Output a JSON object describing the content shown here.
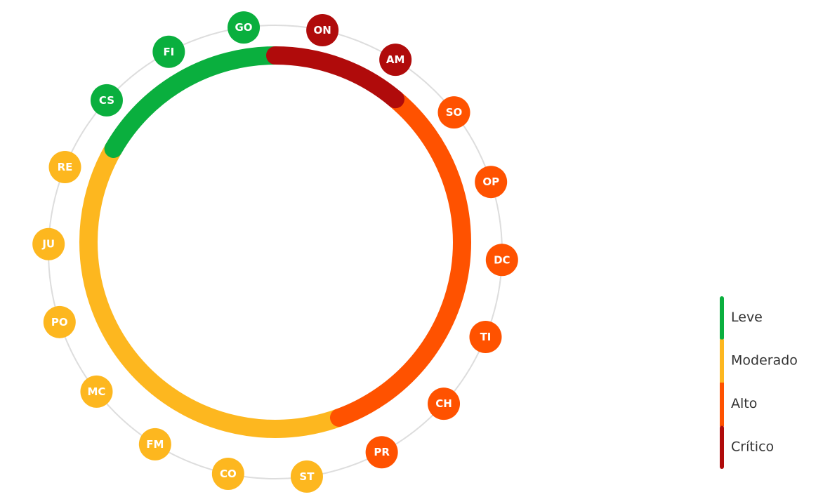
{
  "nodes": [
    {
      "label": "ON",
      "level": "Crítico"
    },
    {
      "label": "AM",
      "level": "Crítico"
    },
    {
      "label": "SO",
      "level": "Alto"
    },
    {
      "label": "OP",
      "level": "Alto"
    },
    {
      "label": "DC",
      "level": "Alto"
    },
    {
      "label": "TI",
      "level": "Alto"
    },
    {
      "label": "CH",
      "level": "Alto"
    },
    {
      "label": "PR",
      "level": "Alto"
    },
    {
      "label": "ST",
      "level": "Moderado"
    },
    {
      "label": "CO",
      "level": "Moderado"
    },
    {
      "label": "FM",
      "level": "Moderado"
    },
    {
      "label": "MC",
      "level": "Moderado"
    },
    {
      "label": "PO",
      "level": "Moderado"
    },
    {
      "label": "JU",
      "level": "Moderado"
    },
    {
      "label": "RE",
      "level": "Moderado"
    },
    {
      "label": "CS",
      "level": "Leve"
    },
    {
      "label": "FI",
      "level": "Leve"
    },
    {
      "label": "GO",
      "level": "Leve"
    }
  ],
  "legend": [
    {
      "label": "Leve",
      "color": "#0aaf3e"
    },
    {
      "label": "Moderado",
      "color": "#fdb71f"
    },
    {
      "label": "Alto",
      "color": "#ff5200"
    },
    {
      "label": "Crítico",
      "color": "#b00b0b"
    }
  ]
}
